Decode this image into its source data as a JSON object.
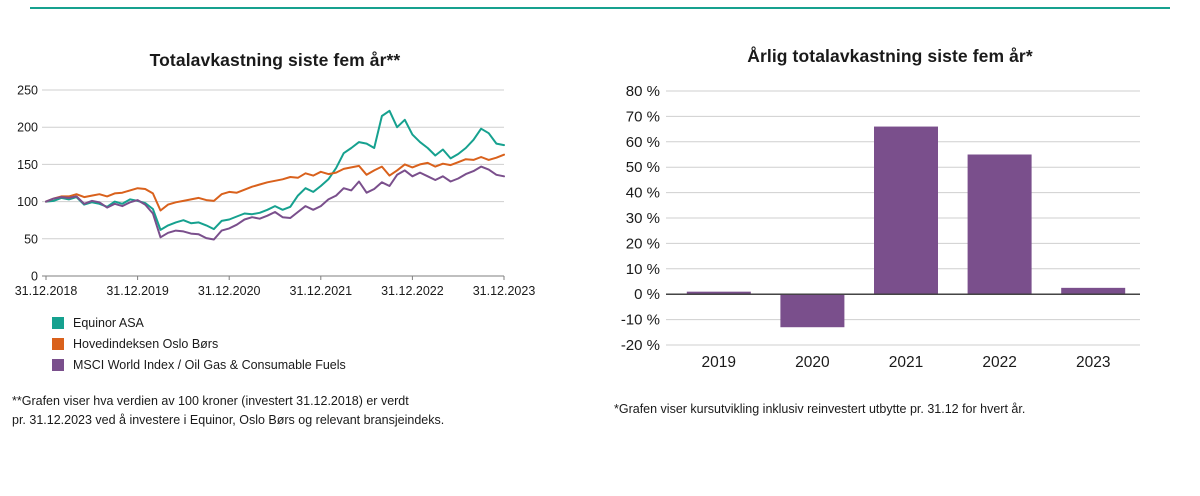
{
  "page": {
    "background": "#ffffff",
    "top_rule_color": "#16a18f"
  },
  "chart_data": [
    {
      "type": "line",
      "title": "Totalavkastning siste fem år**",
      "x_tick_labels": [
        "31.12.2018",
        "31.12.2019",
        "31.12.2020",
        "31.12.2021",
        "31.12.2022",
        "31.12.2023"
      ],
      "y_ticks": [
        0,
        50,
        100,
        150,
        200,
        250
      ],
      "ylim": [
        0,
        250
      ],
      "grid": true,
      "legend_position": "bottom-left",
      "points_per_year": 12,
      "series": [
        {
          "name": "Equinor ASA",
          "color": "#16a18f",
          "values": [
            100,
            101,
            105,
            103,
            106,
            96,
            99,
            97,
            93,
            100,
            97,
            103,
            101,
            98,
            90,
            62,
            68,
            72,
            75,
            71,
            72,
            68,
            63,
            74,
            76,
            80,
            84,
            83,
            85,
            89,
            94,
            89,
            93,
            108,
            118,
            113,
            121,
            130,
            145,
            165,
            172,
            180,
            178,
            172,
            215,
            222,
            200,
            210,
            190,
            180,
            172,
            162,
            170,
            158,
            164,
            172,
            183,
            198,
            192,
            178,
            176
          ]
        },
        {
          "name": "Hovedindeksen Oslo Børs",
          "color": "#d9611c",
          "values": [
            100,
            104,
            107,
            107,
            110,
            106,
            108,
            110,
            107,
            111,
            112,
            115,
            118,
            117,
            111,
            88,
            96,
            99,
            101,
            103,
            105,
            102,
            101,
            110,
            113,
            112,
            116,
            120,
            123,
            126,
            128,
            130,
            133,
            132,
            138,
            135,
            140,
            137,
            139,
            144,
            146,
            148,
            136,
            142,
            147,
            135,
            142,
            150,
            146,
            150,
            152,
            147,
            151,
            149,
            153,
            157,
            156,
            160,
            156,
            159,
            163
          ]
        },
        {
          "name": "MSCI World Index / Oil Gas & Consumable Fuels",
          "color": "#7a4f8c",
          "values": [
            100,
            104,
            106,
            105,
            107,
            97,
            101,
            99,
            92,
            97,
            94,
            99,
            102,
            96,
            84,
            52,
            58,
            61,
            60,
            57,
            56,
            51,
            49,
            61,
            64,
            69,
            76,
            79,
            77,
            81,
            86,
            79,
            78,
            86,
            94,
            89,
            94,
            103,
            108,
            118,
            115,
            127,
            112,
            117,
            126,
            121,
            136,
            142,
            134,
            139,
            134,
            129,
            134,
            127,
            131,
            137,
            141,
            147,
            143,
            136,
            134
          ]
        }
      ],
      "footnote_lines": [
        "**Grafen viser hva verdien av 100 kroner (investert 31.12.2018) er verdt",
        "pr. 31.12.2023 ved å investere i Equinor, Oslo Børs og relevant bransjeindeks."
      ]
    },
    {
      "type": "bar",
      "title": "Årlig totalavkastning siste fem år*",
      "categories": [
        "2019",
        "2020",
        "2021",
        "2022",
        "2023"
      ],
      "values": [
        1,
        -13,
        66,
        55,
        2.5
      ],
      "unit": "%",
      "ylim": [
        -20,
        80
      ],
      "y_ticks": [
        80,
        70,
        60,
        50,
        40,
        30,
        20,
        10,
        0,
        -10,
        -20
      ],
      "grid": true,
      "bar_color": "#7a4f8c",
      "footnote": "*Grafen viser kursutvikling inklusiv reinvestert utbytte pr. 31.12 for hvert år."
    }
  ]
}
